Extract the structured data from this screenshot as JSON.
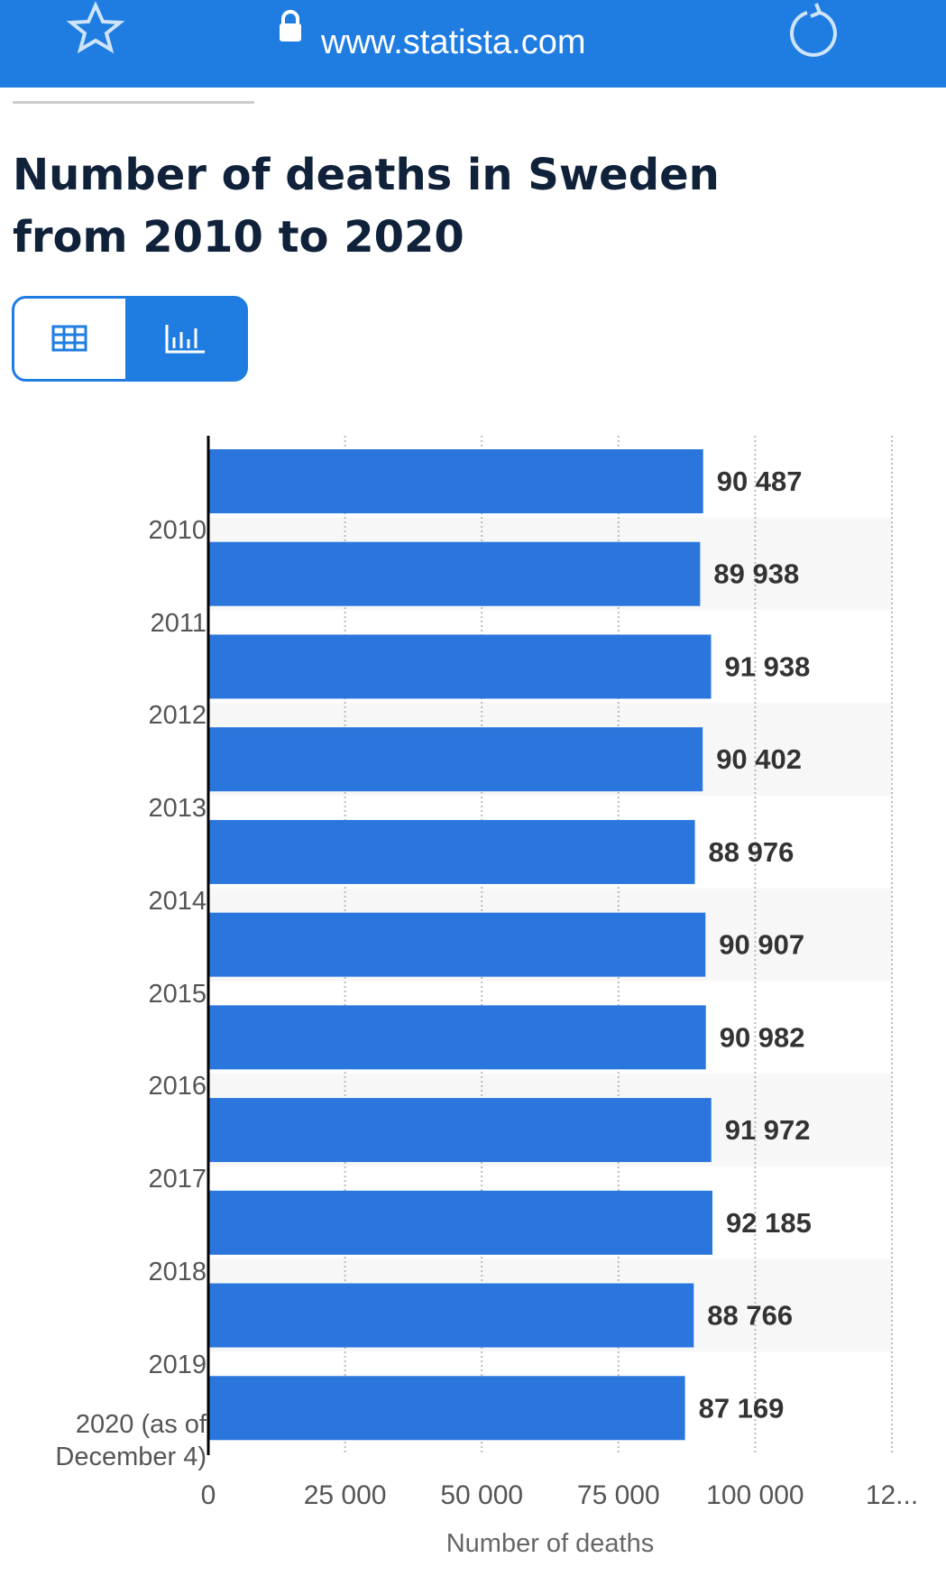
{
  "ui": {
    "url": "www.statista.com"
  },
  "chart_data": {
    "type": "bar",
    "orientation": "horizontal",
    "title": "Number of deaths in Sweden from 2010 to 2020",
    "x_label": "Number of deaths",
    "categories": [
      "2010",
      "2011",
      "2012",
      "2013",
      "2014",
      "2015",
      "2016",
      "2017",
      "2018",
      "2019",
      "2020 (as of December 4)"
    ],
    "values": [
      90487,
      89938,
      91938,
      90402,
      88976,
      90907,
      90982,
      91972,
      92185,
      88766,
      87169
    ],
    "value_labels": [
      "90 487",
      "89 938",
      "91 938",
      "90 402",
      "88 976",
      "90 907",
      "90 982",
      "91 972",
      "92 185",
      "88 766",
      "87 169"
    ],
    "color": "#2a76dd",
    "xlim": [
      0,
      125000
    ],
    "xticks": [
      0,
      {
        "value": 25000,
        "label": "25 000"
      },
      {
        "value": 50000,
        "label": "50 000"
      },
      {
        "value": 75000,
        "label": "75 000"
      },
      {
        "value": 100000,
        "label": "100 000"
      },
      {
        "value": 125000,
        "label": "12..."
      }
    ],
    "grid": true
  }
}
